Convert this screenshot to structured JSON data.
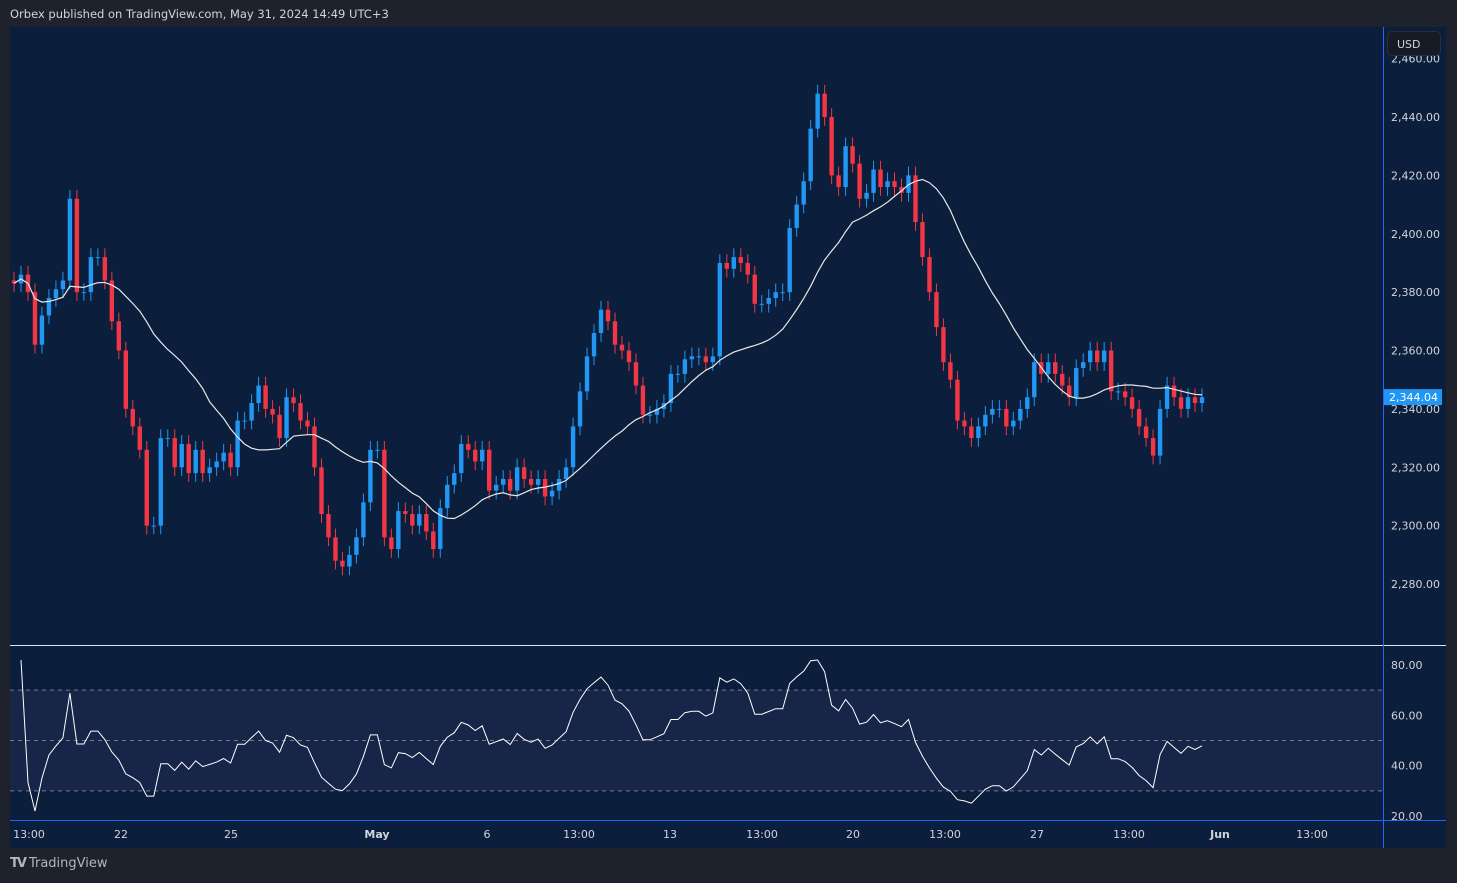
{
  "header": {
    "publisher_line": "Orbex published on TradingView.com, May 31, 2024 14:49 UTC+3"
  },
  "currency_button": "USD",
  "branding": "TradingView",
  "colors": {
    "up": "#2196f3",
    "down": "#f23645",
    "ma": "#e8e8e8",
    "rsi": "#ffffff",
    "background": "#0b1e3b"
  },
  "chart_data": {
    "type": "candlestick",
    "title": "",
    "price_axis": {
      "ticks": [
        2280,
        2300,
        2320,
        2340,
        2360,
        2380,
        2400,
        2420,
        2440,
        2460
      ],
      "tick_labels": [
        "2,280.00",
        "2,300.00",
        "2,320.00",
        "2,340.00",
        "2,360.00",
        "2,380.00",
        "2,400.00",
        "2,420.00",
        "2,440.00",
        "2,460.00"
      ],
      "ylim": [
        2250,
        2465
      ]
    },
    "last_price": 2344.04,
    "last_price_label": "2,344.04",
    "time_axis_labels": [
      "13:00",
      "22",
      "25",
      "May",
      "6",
      "13:00",
      "13",
      "13:00",
      "20",
      "13:00",
      "27",
      "13:00",
      "Jun",
      "13:00"
    ],
    "wick_pad": 3,
    "close": [
      2383,
      2386,
      2380,
      2362,
      2372,
      2378,
      2381,
      2384,
      2412,
      2380,
      2380,
      2392,
      2392,
      2384,
      2370,
      2360,
      2340,
      2334,
      2326,
      2300,
      2300,
      2330,
      2330,
      2320,
      2328,
      2318,
      2326,
      2318,
      2320,
      2322,
      2325,
      2320,
      2336,
      2336,
      2342,
      2348,
      2340,
      2338,
      2330,
      2344,
      2342,
      2336,
      2334,
      2320,
      2304,
      2296,
      2288,
      2286,
      2290,
      2296,
      2308,
      2326,
      2326,
      2296,
      2292,
      2305,
      2304,
      2300,
      2304,
      2298,
      2292,
      2306,
      2314,
      2318,
      2328,
      2326,
      2322,
      2326,
      2312,
      2314,
      2316,
      2312,
      2320,
      2316,
      2314,
      2316,
      2310,
      2312,
      2316,
      2320,
      2334,
      2346,
      2358,
      2366,
      2374,
      2370,
      2362,
      2360,
      2356,
      2348,
      2338,
      2338,
      2340,
      2342,
      2352,
      2352,
      2357,
      2358,
      2358,
      2356,
      2358,
      2390,
      2388,
      2392,
      2390,
      2386,
      2376,
      2376,
      2378,
      2380,
      2380,
      2402,
      2410,
      2418,
      2436,
      2448,
      2440,
      2420,
      2416,
      2430,
      2424,
      2412,
      2414,
      2422,
      2416,
      2418,
      2416,
      2414,
      2420,
      2404,
      2392,
      2380,
      2368,
      2356,
      2350,
      2336,
      2334,
      2330,
      2334,
      2338,
      2340,
      2340,
      2334,
      2336,
      2340,
      2344,
      2356,
      2352,
      2356,
      2352,
      2348,
      2344,
      2354,
      2356,
      2360,
      2356,
      2360,
      2346,
      2346,
      2344,
      2340,
      2334,
      2330,
      2324,
      2340,
      2348,
      2344,
      2340,
      2344,
      2342,
      2344
    ],
    "indicators": [
      {
        "name": "SMA",
        "length": 20,
        "source": "close"
      },
      {
        "name": "RSI",
        "length": 14,
        "levels": [
          70,
          50,
          30
        ],
        "axis_ticks": [
          80,
          60,
          40,
          20
        ],
        "tick_labels": [
          "80.00",
          "60.00",
          "40.00",
          "20.00"
        ]
      }
    ]
  }
}
